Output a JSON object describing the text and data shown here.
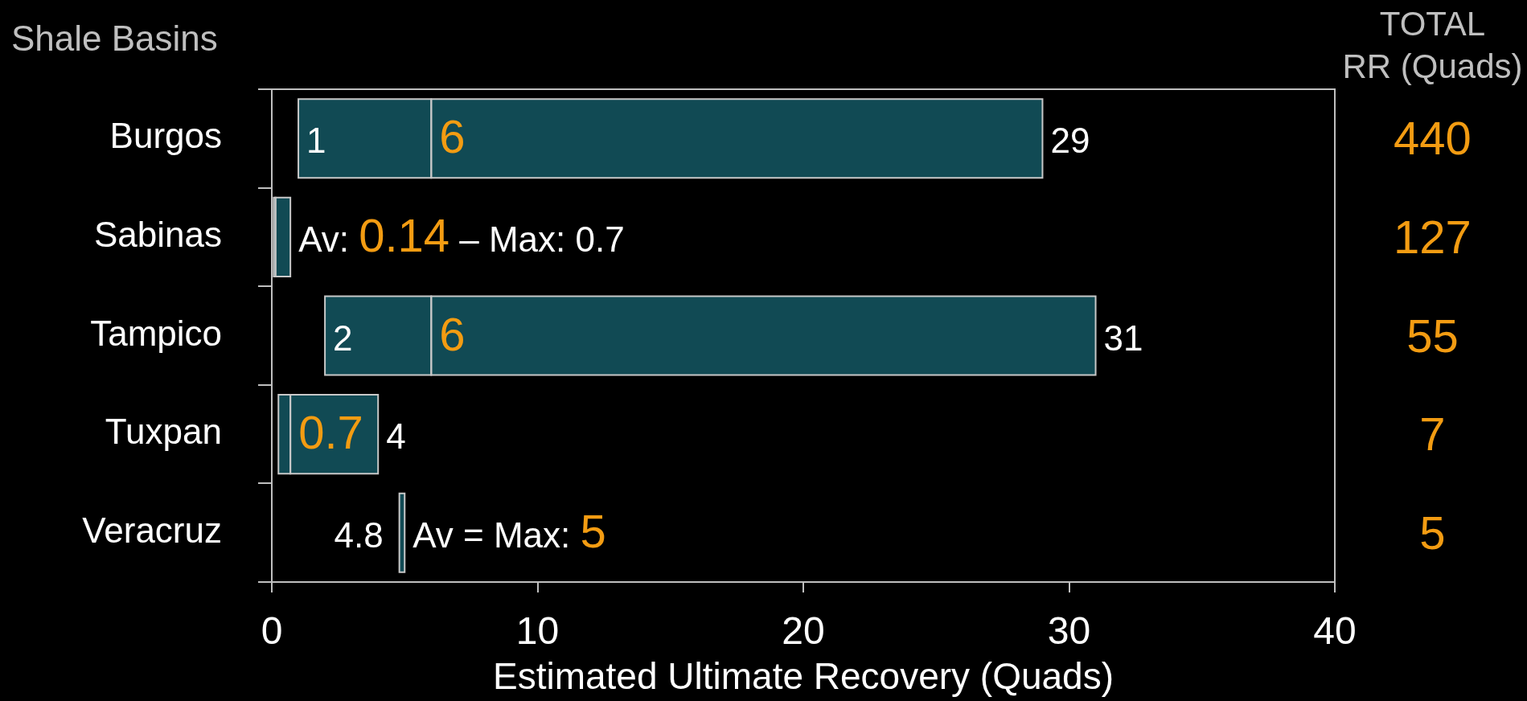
{
  "chart_data": [
    {
      "type": "bar",
      "orientation": "horizontal",
      "xlabel": "Estimated Ultimate Recovery (Quads)",
      "ylabel": "Shale Basins",
      "categories": [
        "Burgos",
        "Sabinas",
        "Tampico",
        "Tuxpan",
        "Veracruz"
      ],
      "series": [
        {
          "color": "#114a54",
          "base": [
            1,
            0.07,
            2,
            0.25,
            4.8
          ],
          "values": [
            5,
            0.07,
            4,
            0.45,
            0.2
          ]
        },
        {
          "color": "#114a54",
          "base": [
            6,
            0.14,
            6,
            0.7,
            null
          ],
          "values": [
            23,
            0.56,
            25,
            3.3,
            null
          ]
        }
      ],
      "xlim": [
        0,
        40
      ],
      "xticks": [
        0,
        10,
        20,
        30,
        40
      ],
      "annotations": [
        {
          "text": "1",
          "x": 1,
          "y": "Burgos"
        },
        {
          "text": "6",
          "x": 6,
          "y": "Burgos"
        },
        {
          "text": "29",
          "x": 29,
          "y": "Burgos"
        },
        {
          "text": "Av: 0.14 – Max: 0.7",
          "x": 0.7,
          "y": "Sabinas"
        },
        {
          "text": "2",
          "x": 2,
          "y": "Tampico"
        },
        {
          "text": "6",
          "x": 6,
          "y": "Tampico"
        },
        {
          "text": "31",
          "x": 31,
          "y": "Tampico"
        },
        {
          "text": "0.7",
          "x": 0.7,
          "y": "Tuxpan"
        },
        {
          "text": "4",
          "x": 4,
          "y": "Tuxpan"
        },
        {
          "text": "4.8",
          "x": 4.8,
          "y": "Veracruz"
        },
        {
          "text": "Av = Max: 5",
          "x": 5,
          "y": "Veracruz"
        }
      ]
    },
    {
      "type": "other",
      "title": "TOTAL\nRR (Quads)",
      "values": [
        440,
        127,
        55,
        7,
        5
      ],
      "color": "#f39c12",
      "data_labels": true
    }
  ]
}
